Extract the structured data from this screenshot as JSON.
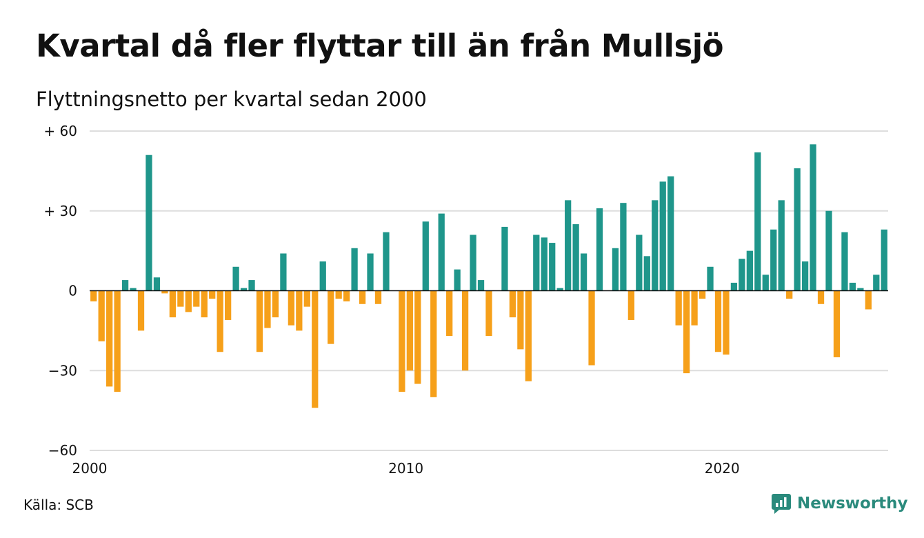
{
  "title": "Kvartal då fler flyttar till än från Mullsjö",
  "subtitle": "Flyttningsnetto per kvartal sedan 2000",
  "source": "Källa: SCB",
  "brand": {
    "name": "Newsworthy",
    "icon": "newsworthy-logo-icon"
  },
  "colors": {
    "positive": "#1f968b",
    "negative": "#f6a01a",
    "grid": "#dddddd",
    "brand": "#2a8a7c"
  },
  "chart_data": {
    "type": "bar",
    "title": "Kvartal då fler flyttar till än från Mullsjö",
    "subtitle": "Flyttningsnetto per kvartal sedan 2000",
    "xlabel": "",
    "ylabel": "",
    "ylim": [
      -60,
      60
    ],
    "xlim": [
      2000,
      2025.25
    ],
    "grid": true,
    "legend": "none",
    "y_ticks": [
      {
        "value": 60,
        "label": "+ 60"
      },
      {
        "value": 30,
        "label": "+ 30"
      },
      {
        "value": 0,
        "label": "0"
      },
      {
        "value": -30,
        "label": "−30"
      },
      {
        "value": -60,
        "label": "−60"
      }
    ],
    "x_ticks": [
      {
        "value": 2000,
        "label": "2000"
      },
      {
        "value": 2010,
        "label": "2010"
      },
      {
        "value": 2020,
        "label": "2020"
      }
    ],
    "start_year": 2000,
    "periods_per_year": 4,
    "values": [
      -4,
      -19,
      -36,
      -38,
      4,
      1,
      -15,
      51,
      5,
      -1,
      -10,
      -6,
      -8,
      -6,
      -10,
      -3,
      -23,
      -11,
      9,
      1,
      4,
      -23,
      -14,
      -10,
      14,
      -13,
      -15,
      -6,
      -44,
      11,
      -20,
      -3,
      -4,
      16,
      -5,
      14,
      -5,
      22,
      0,
      -38,
      -30,
      -35,
      26,
      -40,
      29,
      -17,
      8,
      -30,
      21,
      4,
      -17,
      0,
      24,
      -10,
      -22,
      -34,
      21,
      20,
      18,
      1,
      34,
      25,
      14,
      -28,
      31,
      0,
      16,
      33,
      -11,
      21,
      13,
      34,
      41,
      43,
      -13,
      -31,
      -13,
      -3,
      9,
      -23,
      -24,
      3,
      12,
      15,
      52,
      6,
      23,
      34,
      -3,
      46,
      11,
      55,
      -5,
      30,
      -25,
      22,
      3,
      1,
      -7,
      6,
      23
    ]
  }
}
